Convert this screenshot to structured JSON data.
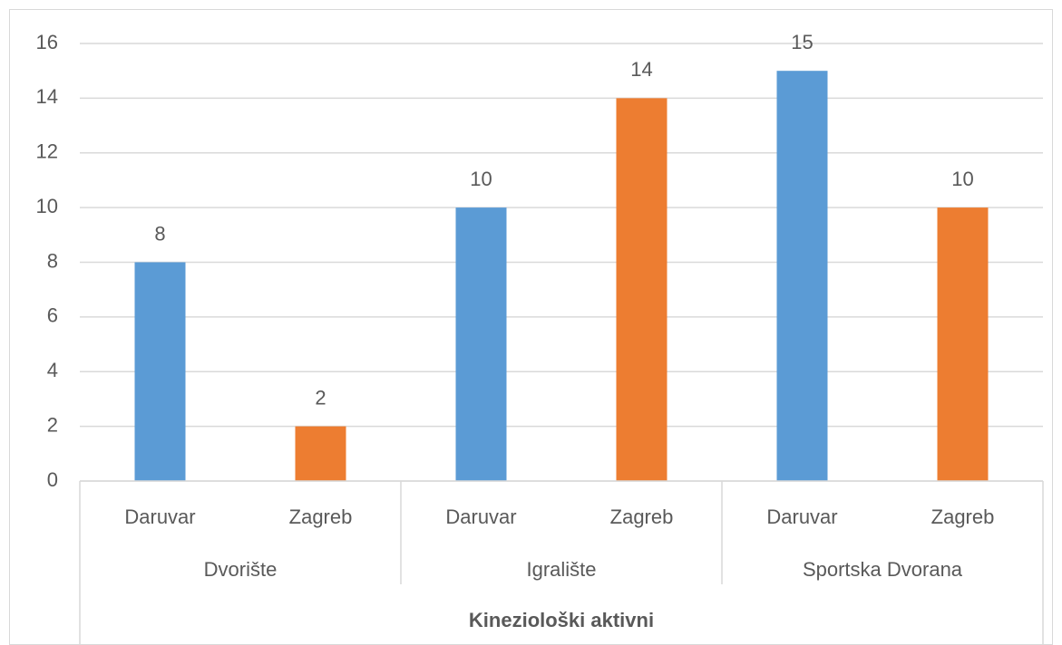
{
  "chart_data": {
    "type": "bar",
    "categories": [
      "Daruvar",
      "Zagreb",
      "Daruvar",
      "Zagreb",
      "Daruvar",
      "Zagreb"
    ],
    "values": [
      8,
      2,
      10,
      14,
      15,
      10
    ],
    "colors": [
      "#5b9bd5",
      "#ed7d31",
      "#5b9bd5",
      "#ed7d31",
      "#5b9bd5",
      "#ed7d31"
    ],
    "groups": [
      "Dvorište",
      "Igralište",
      "Sportska Dvorana"
    ],
    "x_label": "Kineziološki aktivni",
    "ylim": [
      0,
      16
    ],
    "yticks": [
      0,
      2,
      4,
      6,
      8,
      10,
      12,
      14,
      16
    ],
    "grid": true
  }
}
